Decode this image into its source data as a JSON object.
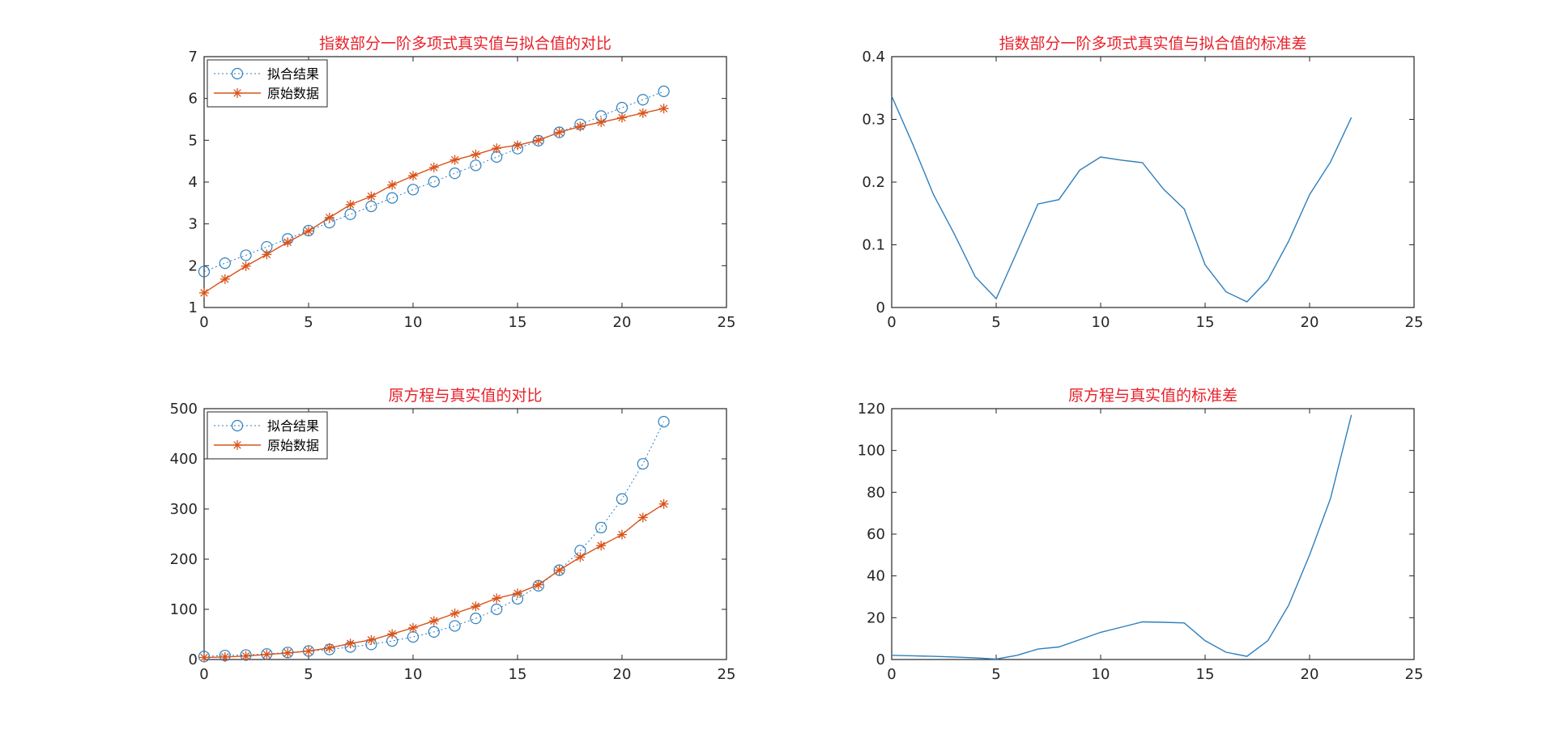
{
  "colors": {
    "fit": "#2e7fbd",
    "raw": "#d95319",
    "title": "#e8212a",
    "axis": "#262626"
  },
  "chart_data": [
    {
      "type": "line",
      "title": "指数部分一阶多项式真实值与拟合值的对比",
      "xlim": [
        0,
        25
      ],
      "ylim": [
        1,
        7
      ],
      "xticks": [
        0,
        5,
        10,
        15,
        20,
        25
      ],
      "yticks": [
        1,
        2,
        3,
        4,
        5,
        6,
        7
      ],
      "legend_placement": "top-left",
      "series": [
        {
          "name": "拟合结果",
          "style": "dotted-circle",
          "x": [
            0,
            1,
            2,
            3,
            4,
            5,
            6,
            7,
            8,
            9,
            10,
            11,
            12,
            13,
            14,
            15,
            16,
            17,
            18,
            19,
            20,
            21,
            22
          ],
          "y": [
            1.86,
            2.06,
            2.25,
            2.45,
            2.64,
            2.84,
            3.03,
            3.23,
            3.42,
            3.62,
            3.82,
            4.01,
            4.21,
            4.4,
            4.6,
            4.8,
            4.99,
            5.19,
            5.38,
            5.58,
            5.78,
            5.97,
            6.17
          ]
        },
        {
          "name": "原始数据",
          "style": "solid-star",
          "x": [
            0,
            1,
            2,
            3,
            4,
            5,
            6,
            7,
            8,
            9,
            10,
            11,
            12,
            13,
            14,
            15,
            16,
            17,
            18,
            19,
            20,
            21,
            22
          ],
          "y": [
            1.35,
            1.68,
            1.99,
            2.27,
            2.56,
            2.83,
            3.15,
            3.46,
            3.66,
            3.93,
            4.15,
            4.35,
            4.53,
            4.66,
            4.81,
            4.88,
            5.0,
            5.19,
            5.33,
            5.43,
            5.54,
            5.65,
            5.76
          ]
        }
      ]
    },
    {
      "type": "line",
      "title": "指数部分一阶多项式真实值与拟合值的标准差",
      "xlim": [
        0,
        25
      ],
      "ylim": [
        0,
        0.4
      ],
      "xticks": [
        0,
        5,
        10,
        15,
        20,
        25
      ],
      "yticks": [
        0,
        0.1,
        0.2,
        0.3,
        0.4
      ],
      "series": [
        {
          "x": [
            0,
            1,
            2,
            3,
            4,
            5,
            6,
            7,
            8,
            9,
            10,
            11,
            12,
            13,
            14,
            15,
            16,
            17,
            18,
            19,
            20,
            21,
            22
          ],
          "y": [
            0.337,
            0.261,
            0.18,
            0.117,
            0.049,
            0.014,
            0.089,
            0.165,
            0.172,
            0.219,
            0.24,
            0.235,
            0.231,
            0.189,
            0.157,
            0.068,
            0.025,
            0.009,
            0.044,
            0.106,
            0.18,
            0.232,
            0.303
          ]
        }
      ]
    },
    {
      "type": "line",
      "title": "原方程与真实值的对比",
      "xlim": [
        0,
        25
      ],
      "ylim": [
        0,
        500
      ],
      "xticks": [
        0,
        5,
        10,
        15,
        20,
        25
      ],
      "yticks": [
        0,
        100,
        200,
        300,
        400,
        500
      ],
      "legend_placement": "top-left",
      "series": [
        {
          "name": "拟合结果",
          "style": "dotted-circle",
          "x": [
            0,
            1,
            2,
            3,
            4,
            5,
            6,
            7,
            8,
            9,
            10,
            11,
            12,
            13,
            14,
            15,
            16,
            17,
            18,
            19,
            20,
            21,
            22
          ],
          "y": [
            6,
            8,
            9,
            11,
            14,
            17,
            20,
            25,
            30,
            37,
            45,
            55,
            67,
            82,
            100,
            121,
            147,
            178,
            217,
            263,
            320,
            390,
            474
          ]
        },
        {
          "name": "原始数据",
          "style": "solid-star",
          "x": [
            0,
            1,
            2,
            3,
            4,
            5,
            6,
            7,
            8,
            9,
            10,
            11,
            12,
            13,
            14,
            15,
            16,
            17,
            18,
            19,
            20,
            21,
            22
          ],
          "y": [
            4,
            5,
            7,
            10,
            13,
            17,
            23,
            32,
            39,
            51,
            63,
            77,
            92,
            106,
            122,
            132,
            149,
            178,
            204,
            227,
            249,
            283,
            310
          ]
        }
      ]
    },
    {
      "type": "line",
      "title": "原方程与真实值的标准差",
      "xlim": [
        0,
        25
      ],
      "ylim": [
        0,
        120
      ],
      "xticks": [
        0,
        5,
        10,
        15,
        20,
        25
      ],
      "yticks": [
        0,
        20,
        40,
        60,
        80,
        100,
        120
      ],
      "series": [
        {
          "x": [
            0,
            1,
            2,
            3,
            4,
            5,
            6,
            7,
            8,
            9,
            10,
            11,
            12,
            13,
            14,
            15,
            16,
            17,
            18,
            19,
            20,
            21,
            22
          ],
          "y": [
            2,
            1.8,
            1.5,
            1.2,
            0.8,
            0.2,
            2,
            5,
            6,
            9.5,
            13,
            15.5,
            18,
            17.8,
            17.5,
            9,
            3.5,
            1.5,
            9,
            26,
            50,
            77,
            117
          ]
        }
      ]
    }
  ]
}
